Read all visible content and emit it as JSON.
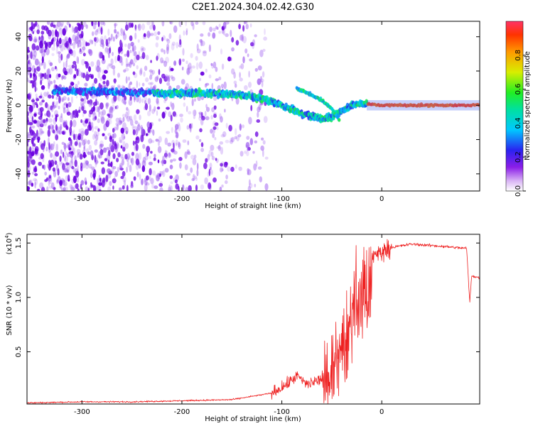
{
  "title": "C2E1.2024.304.02.42.G30",
  "colors": {
    "snr_line": "#ee2222",
    "spectrogram_base": "#7a00ee",
    "frame": "#000000"
  },
  "chart_data": [
    {
      "type": "heatmap",
      "xlabel": "Height of straight line (km)",
      "ylabel": "Frequency (Hz)",
      "xlim": [
        -355,
        98
      ],
      "ylim": [
        -50,
        49
      ],
      "xticks": [
        -300,
        -200,
        -100,
        0
      ],
      "yticks": [
        -40,
        -20,
        0,
        20,
        40
      ],
      "colorbar": {
        "label": "Normalized spectral amplitude",
        "range": [
          0,
          1
        ],
        "ticks": [
          "0.0",
          "0.2",
          "0.4",
          "0.6",
          "0.8"
        ],
        "colormap": "white-purple-blue-cyan-green-yellow-red"
      },
      "main_trace": [
        {
          "x": -320,
          "f": 8
        },
        {
          "x": -280,
          "f": 8
        },
        {
          "x": -220,
          "f": 7
        },
        {
          "x": -180,
          "f": 7
        },
        {
          "x": -140,
          "f": 6
        },
        {
          "x": -120,
          "f": 4
        },
        {
          "x": -100,
          "f": 0
        },
        {
          "x": -80,
          "f": -5
        },
        {
          "x": -60,
          "f": -8
        },
        {
          "x": -50,
          "f": -7
        },
        {
          "x": -40,
          "f": -3
        },
        {
          "x": -30,
          "f": 0
        },
        {
          "x": -20,
          "f": 1
        },
        {
          "x": 0,
          "f": 0
        },
        {
          "x": 98,
          "f": 0
        }
      ],
      "secondary_trace": [
        {
          "x": -85,
          "f": 10
        },
        {
          "x": -70,
          "f": 6
        },
        {
          "x": -60,
          "f": 3
        },
        {
          "x": -50,
          "f": -2
        },
        {
          "x": -42,
          "f": -9
        }
      ]
    },
    {
      "type": "line",
      "xlabel": "Height of straight line (km)",
      "ylabel": "SNR (10 * v/v)",
      "y_scale_label": "(x10",
      "y_scale_exponent": "4",
      "xlim": [
        -355,
        98
      ],
      "ylim": [
        0.02,
        1.58
      ],
      "xticks": [
        -300,
        -200,
        -100,
        0
      ],
      "yticks": [
        "0.5",
        "1.0",
        "1.5"
      ],
      "series": [
        {
          "envelope": [
            {
              "x": -355,
              "y": 0.03
            },
            {
              "x": -300,
              "y": 0.04
            },
            {
              "x": -250,
              "y": 0.04
            },
            {
              "x": -200,
              "y": 0.05
            },
            {
              "x": -150,
              "y": 0.06
            },
            {
              "x": -110,
              "y": 0.12
            },
            {
              "x": -95,
              "y": 0.2
            },
            {
              "x": -85,
              "y": 0.28
            },
            {
              "x": -75,
              "y": 0.2
            },
            {
              "x": -60,
              "y": 0.25
            },
            {
              "x": -45,
              "y": 0.55
            },
            {
              "x": -35,
              "y": 0.85
            },
            {
              "x": -25,
              "y": 1.15
            },
            {
              "x": -15,
              "y": 1.3
            },
            {
              "x": -5,
              "y": 1.4
            },
            {
              "x": 10,
              "y": 1.46
            },
            {
              "x": 30,
              "y": 1.49
            },
            {
              "x": 60,
              "y": 1.47
            },
            {
              "x": 85,
              "y": 1.45
            },
            {
              "x": 88,
              "y": 0.95
            },
            {
              "x": 90,
              "y": 1.2
            },
            {
              "x": 98,
              "y": 1.18
            }
          ]
        }
      ]
    }
  ]
}
